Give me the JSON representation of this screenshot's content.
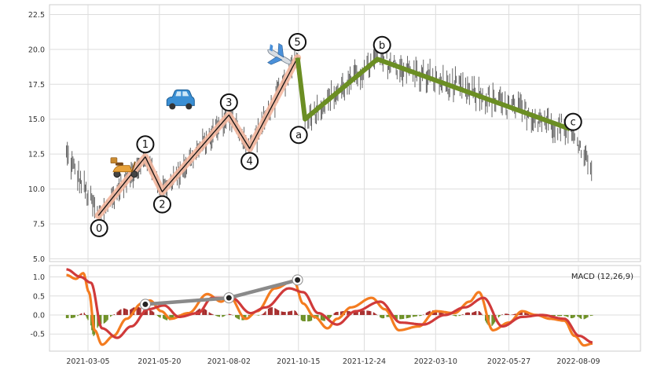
{
  "chart_data": [
    {
      "type": "ohlc-elliott",
      "ylim": [
        4.8,
        23.2
      ],
      "yticks": [
        "5.0",
        "7.5",
        "10.0",
        "12.5",
        "15.0",
        "17.5",
        "20.0",
        "22.5"
      ],
      "ytick_values": [
        5.0,
        7.5,
        10.0,
        12.5,
        15.0,
        17.5,
        20.0,
        22.5
      ],
      "xticks": [
        "2021-03-05",
        "2021-05-20",
        "2021-08-02",
        "2021-10-15",
        "2021-12-24",
        "2022-03-10",
        "2022-05-27",
        "2022-08-09"
      ],
      "grid": true,
      "colors": {
        "candle": "#555555",
        "impulse_glow": "#f4b8a0",
        "impulse_line": "#111111",
        "corrective": "#6b8e23"
      },
      "impulse_waves": [
        {
          "label": "0",
          "date": "2021-03-16",
          "price": 8.1
        },
        {
          "label": "1",
          "date": "2021-05-05",
          "price": 12.3
        },
        {
          "label": "2",
          "date": "2021-05-23",
          "price": 9.8
        },
        {
          "label": "3",
          "date": "2021-08-02",
          "price": 15.3
        },
        {
          "label": "4",
          "date": "2021-08-24",
          "price": 12.9
        },
        {
          "label": "5",
          "date": "2021-10-14",
          "price": 19.4
        }
      ],
      "corrective_waves": [
        {
          "label": "a",
          "date": "2021-10-22",
          "price": 15.0
        },
        {
          "label": "b",
          "date": "2022-01-07",
          "price": 19.3
        },
        {
          "label": "c",
          "date": "2022-07-31",
          "price": 14.3
        }
      ],
      "icons": [
        "scooter-icon",
        "car-icon",
        "airplane-icon"
      ],
      "series_ranges": [
        {
          "start": "2021-02-10",
          "end": "2021-03-16",
          "from": 12.5,
          "to": 8.1,
          "noise": 1.2
        },
        {
          "start": "2021-03-16",
          "end": "2021-05-05",
          "from": 8.1,
          "to": 12.3,
          "noise": 0.8
        },
        {
          "start": "2021-05-05",
          "end": "2021-05-23",
          "from": 12.3,
          "to": 9.8,
          "noise": 0.7
        },
        {
          "start": "2021-05-23",
          "end": "2021-08-02",
          "from": 9.8,
          "to": 15.3,
          "noise": 0.9
        },
        {
          "start": "2021-08-02",
          "end": "2021-08-24",
          "from": 15.3,
          "to": 12.9,
          "noise": 0.8
        },
        {
          "start": "2021-08-24",
          "end": "2021-10-14",
          "from": 12.9,
          "to": 19.4,
          "noise": 1.0
        },
        {
          "start": "2021-10-14",
          "end": "2021-10-22",
          "from": 19.4,
          "to": 15.0,
          "noise": 0.9
        },
        {
          "start": "2021-10-22",
          "end": "2022-01-07",
          "from": 15.0,
          "to": 19.3,
          "noise": 1.2
        },
        {
          "start": "2022-01-07",
          "end": "2022-07-31",
          "from": 19.3,
          "to": 14.3,
          "noise": 1.4
        },
        {
          "start": "2022-07-31",
          "end": "2022-08-24",
          "from": 14.3,
          "to": 11.5,
          "noise": 0.8
        }
      ]
    },
    {
      "type": "macd",
      "legend": "MACD (12,26,9)",
      "ylim": [
        -0.95,
        1.3
      ],
      "yticks": [
        "-0.5",
        "0.0",
        "0.5",
        "1.0"
      ],
      "ytick_values": [
        -0.5,
        0.0,
        0.5,
        1.0
      ],
      "colors": {
        "macd": "#f47c20",
        "signal": "#d03a3a",
        "hist_pos": "#a52a2a",
        "hist_neg": "#6b8e23",
        "connector": "#8a8a8a"
      },
      "macd_points": [
        {
          "date": "2021-02-10",
          "value": 1.05
        },
        {
          "date": "2021-02-20",
          "value": 0.95
        },
        {
          "date": "2021-02-28",
          "value": 1.1
        },
        {
          "date": "2021-03-06",
          "value": 0.6
        },
        {
          "date": "2021-03-12",
          "value": -0.4
        },
        {
          "date": "2021-03-20",
          "value": -0.78
        },
        {
          "date": "2021-04-01",
          "value": -0.55
        },
        {
          "date": "2021-04-15",
          "value": -0.1
        },
        {
          "date": "2021-05-01",
          "value": 0.3
        },
        {
          "date": "2021-05-10",
          "value": 0.38
        },
        {
          "date": "2021-05-22",
          "value": 0.1
        },
        {
          "date": "2021-06-01",
          "value": -0.1
        },
        {
          "date": "2021-06-20",
          "value": 0.05
        },
        {
          "date": "2021-07-10",
          "value": 0.55
        },
        {
          "date": "2021-07-25",
          "value": 0.35
        },
        {
          "date": "2021-08-02",
          "value": 0.5
        },
        {
          "date": "2021-08-20",
          "value": -0.1
        },
        {
          "date": "2021-09-01",
          "value": 0.1
        },
        {
          "date": "2021-09-20",
          "value": 0.7
        },
        {
          "date": "2021-10-10",
          "value": 0.9
        },
        {
          "date": "2021-10-20",
          "value": 0.3
        },
        {
          "date": "2021-11-01",
          "value": -0.05
        },
        {
          "date": "2021-11-15",
          "value": -0.35
        },
        {
          "date": "2021-11-25",
          "value": -0.1
        },
        {
          "date": "2021-12-10",
          "value": 0.2
        },
        {
          "date": "2022-01-01",
          "value": 0.45
        },
        {
          "date": "2022-01-15",
          "value": 0.15
        },
        {
          "date": "2022-01-30",
          "value": -0.4
        },
        {
          "date": "2022-02-20",
          "value": -0.3
        },
        {
          "date": "2022-03-10",
          "value": 0.1
        },
        {
          "date": "2022-03-30",
          "value": 0.05
        },
        {
          "date": "2022-04-15",
          "value": 0.35
        },
        {
          "date": "2022-04-25",
          "value": 0.6
        },
        {
          "date": "2022-05-10",
          "value": -0.4
        },
        {
          "date": "2022-05-27",
          "value": -0.2
        },
        {
          "date": "2022-06-10",
          "value": 0.1
        },
        {
          "date": "2022-06-25",
          "value": 0.0
        },
        {
          "date": "2022-07-10",
          "value": -0.1
        },
        {
          "date": "2022-07-25",
          "value": -0.15
        },
        {
          "date": "2022-08-05",
          "value": -0.55
        },
        {
          "date": "2022-08-15",
          "value": -0.8
        },
        {
          "date": "2022-08-24",
          "value": -0.75
        }
      ],
      "signal_points": [
        {
          "date": "2021-02-10",
          "value": 1.2
        },
        {
          "date": "2021-02-25",
          "value": 1.0
        },
        {
          "date": "2021-03-08",
          "value": 0.85
        },
        {
          "date": "2021-03-20",
          "value": -0.35
        },
        {
          "date": "2021-04-05",
          "value": -0.6
        },
        {
          "date": "2021-04-20",
          "value": -0.3
        },
        {
          "date": "2021-05-08",
          "value": 0.15
        },
        {
          "date": "2021-05-25",
          "value": 0.25
        },
        {
          "date": "2021-06-10",
          "value": -0.05
        },
        {
          "date": "2021-06-30",
          "value": 0.05
        },
        {
          "date": "2021-07-15",
          "value": 0.45
        },
        {
          "date": "2021-08-05",
          "value": 0.45
        },
        {
          "date": "2021-08-25",
          "value": 0.05
        },
        {
          "date": "2021-09-10",
          "value": 0.2
        },
        {
          "date": "2021-10-05",
          "value": 0.7
        },
        {
          "date": "2021-10-20",
          "value": 0.6
        },
        {
          "date": "2021-11-05",
          "value": 0.05
        },
        {
          "date": "2021-11-25",
          "value": -0.25
        },
        {
          "date": "2021-12-15",
          "value": 0.1
        },
        {
          "date": "2022-01-10",
          "value": 0.35
        },
        {
          "date": "2022-02-01",
          "value": -0.2
        },
        {
          "date": "2022-02-25",
          "value": -0.25
        },
        {
          "date": "2022-03-20",
          "value": 0.0
        },
        {
          "date": "2022-04-10",
          "value": 0.2
        },
        {
          "date": "2022-04-30",
          "value": 0.45
        },
        {
          "date": "2022-05-20",
          "value": -0.3
        },
        {
          "date": "2022-06-10",
          "value": -0.05
        },
        {
          "date": "2022-07-01",
          "value": 0.0
        },
        {
          "date": "2022-07-25",
          "value": -0.1
        },
        {
          "date": "2022-08-10",
          "value": -0.55
        },
        {
          "date": "2022-08-24",
          "value": -0.72
        }
      ],
      "connector_points": [
        {
          "date": "2021-05-05",
          "value": 0.28
        },
        {
          "date": "2021-08-02",
          "value": 0.45
        },
        {
          "date": "2021-10-14",
          "value": 0.92
        }
      ]
    }
  ]
}
